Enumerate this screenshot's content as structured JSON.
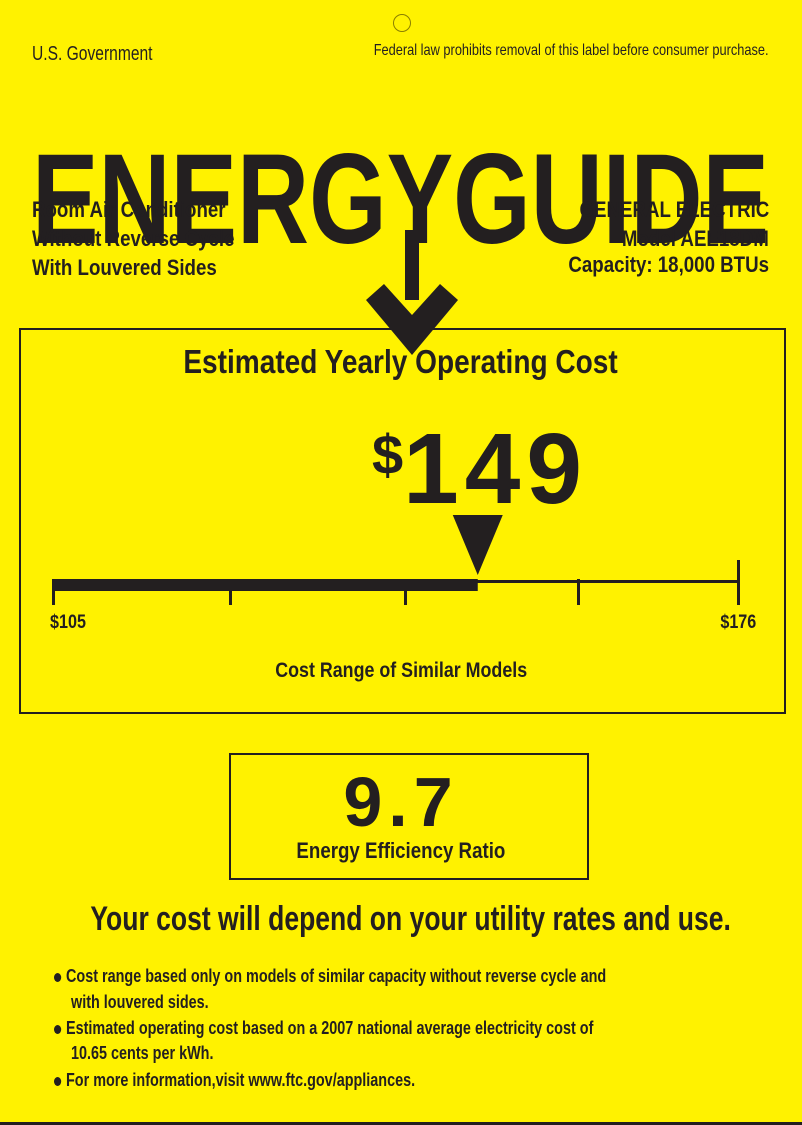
{
  "header": {
    "government": "U.S. Government",
    "law_notice": "Federal law prohibits removal of this label before consumer purchase.",
    "title": "ENERGYGUIDE"
  },
  "product": {
    "lines": [
      "Room Air Conditioner",
      "Without Reverse Cycle",
      "With Louvered Sides"
    ],
    "manufacturer": "GENERAL ELECTRIC",
    "model": "Model AEE18DM",
    "capacity": "Capacity: 18,000 BTUs"
  },
  "cost": {
    "heading": "Estimated Yearly Operating Cost",
    "currency": "$",
    "amount": "149",
    "value": 149,
    "range_min": 105,
    "range_max": 176,
    "range_min_label": "$105",
    "range_max_label": "$176",
    "range_label": "Cost Range of Similar Models"
  },
  "efficiency": {
    "value": "9.7",
    "label": "Energy Efficiency Ratio"
  },
  "footer": {
    "headline": "Your cost will depend on your utility rates and use.",
    "bullets": [
      [
        "Cost range based only on models of similar capacity without reverse cycle and",
        "with louvered sides."
      ],
      [
        "Estimated operating cost based on a 2007 national average electricity cost of",
        "10.65 cents per kWh."
      ],
      [
        "For more information,visit www.ftc.gov/appliances."
      ]
    ]
  },
  "colors": {
    "background": "#fff200",
    "ink": "#231f20"
  }
}
